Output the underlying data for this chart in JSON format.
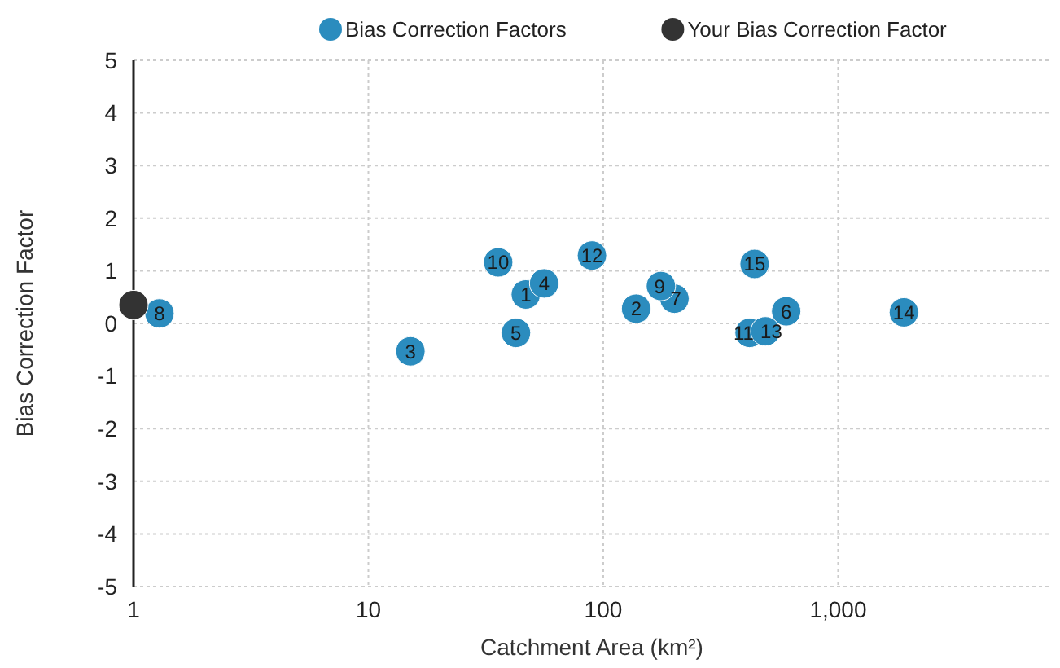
{
  "chart_data": {
    "type": "scatter",
    "xlabel": "Catchment Area (km²)",
    "ylabel": "Bias Correction Factor",
    "log": "x",
    "xlim": [
      1,
      8000
    ],
    "xticks": [
      1,
      10,
      100,
      {
        "value": 1000,
        "label": "1,000"
      }
    ],
    "ylim": [
      -5,
      5
    ],
    "yticks": [
      -5,
      -4,
      -3,
      -2,
      -1,
      0,
      1,
      2,
      3,
      4,
      5
    ],
    "grid": true,
    "legend": "top right",
    "marker": "circle",
    "series": [
      {
        "name": "Bias Correction Factors",
        "color": "#2b8cbe",
        "x": [
          46.8,
          138,
          15.1,
          56,
          42.5,
          601,
          201,
          1.29,
          176,
          35.7,
          420,
          89.5,
          490,
          1905,
          441
        ],
        "values": [
          0.55,
          0.28,
          -0.53,
          0.76,
          -0.18,
          0.23,
          0.47,
          0.19,
          0.71,
          1.16,
          -0.18,
          1.29,
          -0.15,
          0.21,
          1.13
        ]
      },
      {
        "name": "Your Bias Correction Factor",
        "color": "#333333",
        "x": [
          1
        ],
        "values": [
          0.35
        ]
      }
    ],
    "annotations": [
      {
        "text": "1",
        "x": 46.8,
        "y": 0.55
      },
      {
        "text": "2",
        "x": 138,
        "y": 0.28
      },
      {
        "text": "3",
        "x": 15.1,
        "y": -0.53
      },
      {
        "text": "4",
        "x": 56,
        "y": 0.76
      },
      {
        "text": "5",
        "x": 42.5,
        "y": -0.18
      },
      {
        "text": "6",
        "x": 601,
        "y": 0.23
      },
      {
        "text": "7",
        "x": 201,
        "y": 0.47
      },
      {
        "text": "8",
        "x": 1.29,
        "y": 0.19
      },
      {
        "text": "9",
        "x": 176,
        "y": 0.71
      },
      {
        "text": "10",
        "x": 35.7,
        "y": 1.16
      },
      {
        "text": "11",
        "x": 420,
        "y": -0.18
      },
      {
        "text": "12",
        "x": 89.5,
        "y": 1.29
      },
      {
        "text": "13",
        "x": 490,
        "y": -0.15
      },
      {
        "text": "14",
        "x": 1905,
        "y": 0.21
      },
      {
        "text": "15",
        "x": 441,
        "y": 1.13
      }
    ]
  }
}
